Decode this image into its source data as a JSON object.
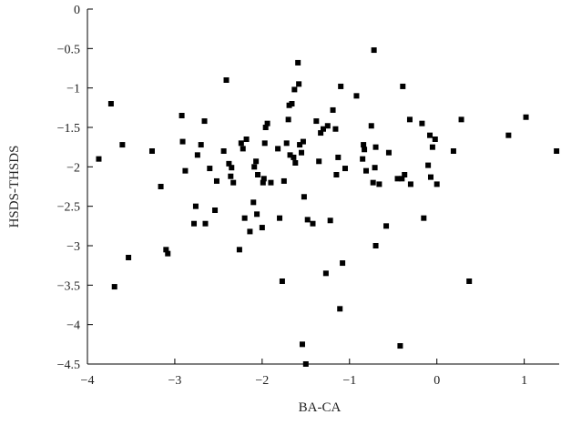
{
  "chart_data": {
    "type": "scatter",
    "title": "",
    "xlabel": "BA-CA",
    "ylabel": "HSDS-THSDS",
    "xlim": [
      -4,
      1.4
    ],
    "ylim": [
      -4.5,
      0
    ],
    "xticks": [
      -4,
      -3,
      -2,
      -1,
      0,
      1
    ],
    "xtick_labels": [
      "−4",
      "−3",
      "−2",
      "−1",
      "0",
      "1"
    ],
    "yticks": [
      0,
      -0.5,
      -1,
      -1.5,
      -2,
      -2.5,
      -3,
      -3.5,
      -4,
      -4.5
    ],
    "ytick_labels": [
      "0",
      "−0.5",
      "−1",
      "−1.5",
      "−2",
      "−2.5",
      "−3",
      "−3.5",
      "−4",
      "−4.5"
    ],
    "grid": false,
    "marker": "square",
    "color": "#000000",
    "points": [
      [
        -3.87,
        -1.9
      ],
      [
        -3.73,
        -1.2
      ],
      [
        -3.69,
        -3.52
      ],
      [
        -3.6,
        -1.72
      ],
      [
        -3.53,
        -3.15
      ],
      [
        -3.26,
        -1.8
      ],
      [
        -3.16,
        -2.25
      ],
      [
        -3.1,
        -3.05
      ],
      [
        -3.08,
        -3.1
      ],
      [
        -2.92,
        -1.35
      ],
      [
        -2.91,
        -1.68
      ],
      [
        -2.88,
        -2.05
      ],
      [
        -2.78,
        -2.72
      ],
      [
        -2.76,
        -2.5
      ],
      [
        -2.74,
        -1.85
      ],
      [
        -2.7,
        -1.72
      ],
      [
        -2.66,
        -1.42
      ],
      [
        -2.65,
        -2.72
      ],
      [
        -2.6,
        -2.02
      ],
      [
        -2.54,
        -2.55
      ],
      [
        -2.52,
        -2.18
      ],
      [
        -2.44,
        -1.8
      ],
      [
        -2.41,
        -0.9
      ],
      [
        -2.38,
        -1.96
      ],
      [
        -2.36,
        -2.12
      ],
      [
        -2.35,
        -2.01
      ],
      [
        -2.33,
        -2.2
      ],
      [
        -2.26,
        -3.05
      ],
      [
        -2.24,
        -1.7
      ],
      [
        -2.22,
        -1.77
      ],
      [
        -2.2,
        -2.65
      ],
      [
        -2.18,
        -1.65
      ],
      [
        -2.14,
        -2.82
      ],
      [
        -2.1,
        -2.45
      ],
      [
        -2.09,
        -2.0
      ],
      [
        -2.07,
        -1.93
      ],
      [
        -2.06,
        -2.6
      ],
      [
        -2.05,
        -2.1
      ],
      [
        -2.0,
        -2.77
      ],
      [
        -1.99,
        -2.2
      ],
      [
        -1.98,
        -2.15
      ],
      [
        -1.97,
        -1.7
      ],
      [
        -1.96,
        -1.5
      ],
      [
        -1.94,
        -1.45
      ],
      [
        -1.9,
        -2.2
      ],
      [
        -1.82,
        -1.77
      ],
      [
        -1.8,
        -2.65
      ],
      [
        -1.77,
        -3.45
      ],
      [
        -1.75,
        -2.18
      ],
      [
        -1.72,
        -1.7
      ],
      [
        -1.7,
        -1.4
      ],
      [
        -1.69,
        -1.22
      ],
      [
        -1.68,
        -1.85
      ],
      [
        -1.66,
        -1.2
      ],
      [
        -1.64,
        -1.88
      ],
      [
        -1.63,
        -1.02
      ],
      [
        -1.62,
        -1.95
      ],
      [
        -1.59,
        -0.68
      ],
      [
        -1.58,
        -0.95
      ],
      [
        -1.57,
        -1.72
      ],
      [
        -1.55,
        -1.82
      ],
      [
        -1.54,
        -4.25
      ],
      [
        -1.53,
        -1.68
      ],
      [
        -1.52,
        -2.38
      ],
      [
        -1.5,
        -4.5
      ],
      [
        -1.48,
        -2.67
      ],
      [
        -1.42,
        -2.72
      ],
      [
        -1.38,
        -1.42
      ],
      [
        -1.35,
        -1.93
      ],
      [
        -1.33,
        -1.57
      ],
      [
        -1.3,
        -1.52
      ],
      [
        -1.27,
        -3.35
      ],
      [
        -1.25,
        -1.48
      ],
      [
        -1.22,
        -2.68
      ],
      [
        -1.19,
        -1.28
      ],
      [
        -1.16,
        -1.52
      ],
      [
        -1.15,
        -2.1
      ],
      [
        -1.13,
        -1.88
      ],
      [
        -1.11,
        -3.8
      ],
      [
        -1.1,
        -0.98
      ],
      [
        -1.08,
        -3.22
      ],
      [
        -1.05,
        -2.02
      ],
      [
        -0.92,
        -1.1
      ],
      [
        -0.85,
        -1.9
      ],
      [
        -0.84,
        -1.72
      ],
      [
        -0.83,
        -1.78
      ],
      [
        -0.81,
        -2.05
      ],
      [
        -0.75,
        -1.48
      ],
      [
        -0.73,
        -2.2
      ],
      [
        -0.72,
        -0.52
      ],
      [
        -0.71,
        -2.01
      ],
      [
        -0.7,
        -1.75
      ],
      [
        -0.7,
        -3.0
      ],
      [
        -0.66,
        -2.22
      ],
      [
        -0.58,
        -2.75
      ],
      [
        -0.55,
        -1.82
      ],
      [
        -0.45,
        -2.15
      ],
      [
        -0.42,
        -4.27
      ],
      [
        -0.4,
        -2.15
      ],
      [
        -0.39,
        -0.98
      ],
      [
        -0.37,
        -2.1
      ],
      [
        -0.31,
        -1.4
      ],
      [
        -0.3,
        -2.22
      ],
      [
        -0.17,
        -1.45
      ],
      [
        -0.15,
        -2.65
      ],
      [
        -0.1,
        -1.98
      ],
      [
        -0.08,
        -1.6
      ],
      [
        -0.07,
        -2.13
      ],
      [
        -0.05,
        -1.75
      ],
      [
        -0.02,
        -1.65
      ],
      [
        0.0,
        -2.22
      ],
      [
        0.19,
        -1.8
      ],
      [
        0.28,
        -1.4
      ],
      [
        0.37,
        -3.45
      ],
      [
        0.82,
        -1.6
      ],
      [
        1.02,
        -1.37
      ],
      [
        1.37,
        -1.8
      ]
    ]
  }
}
